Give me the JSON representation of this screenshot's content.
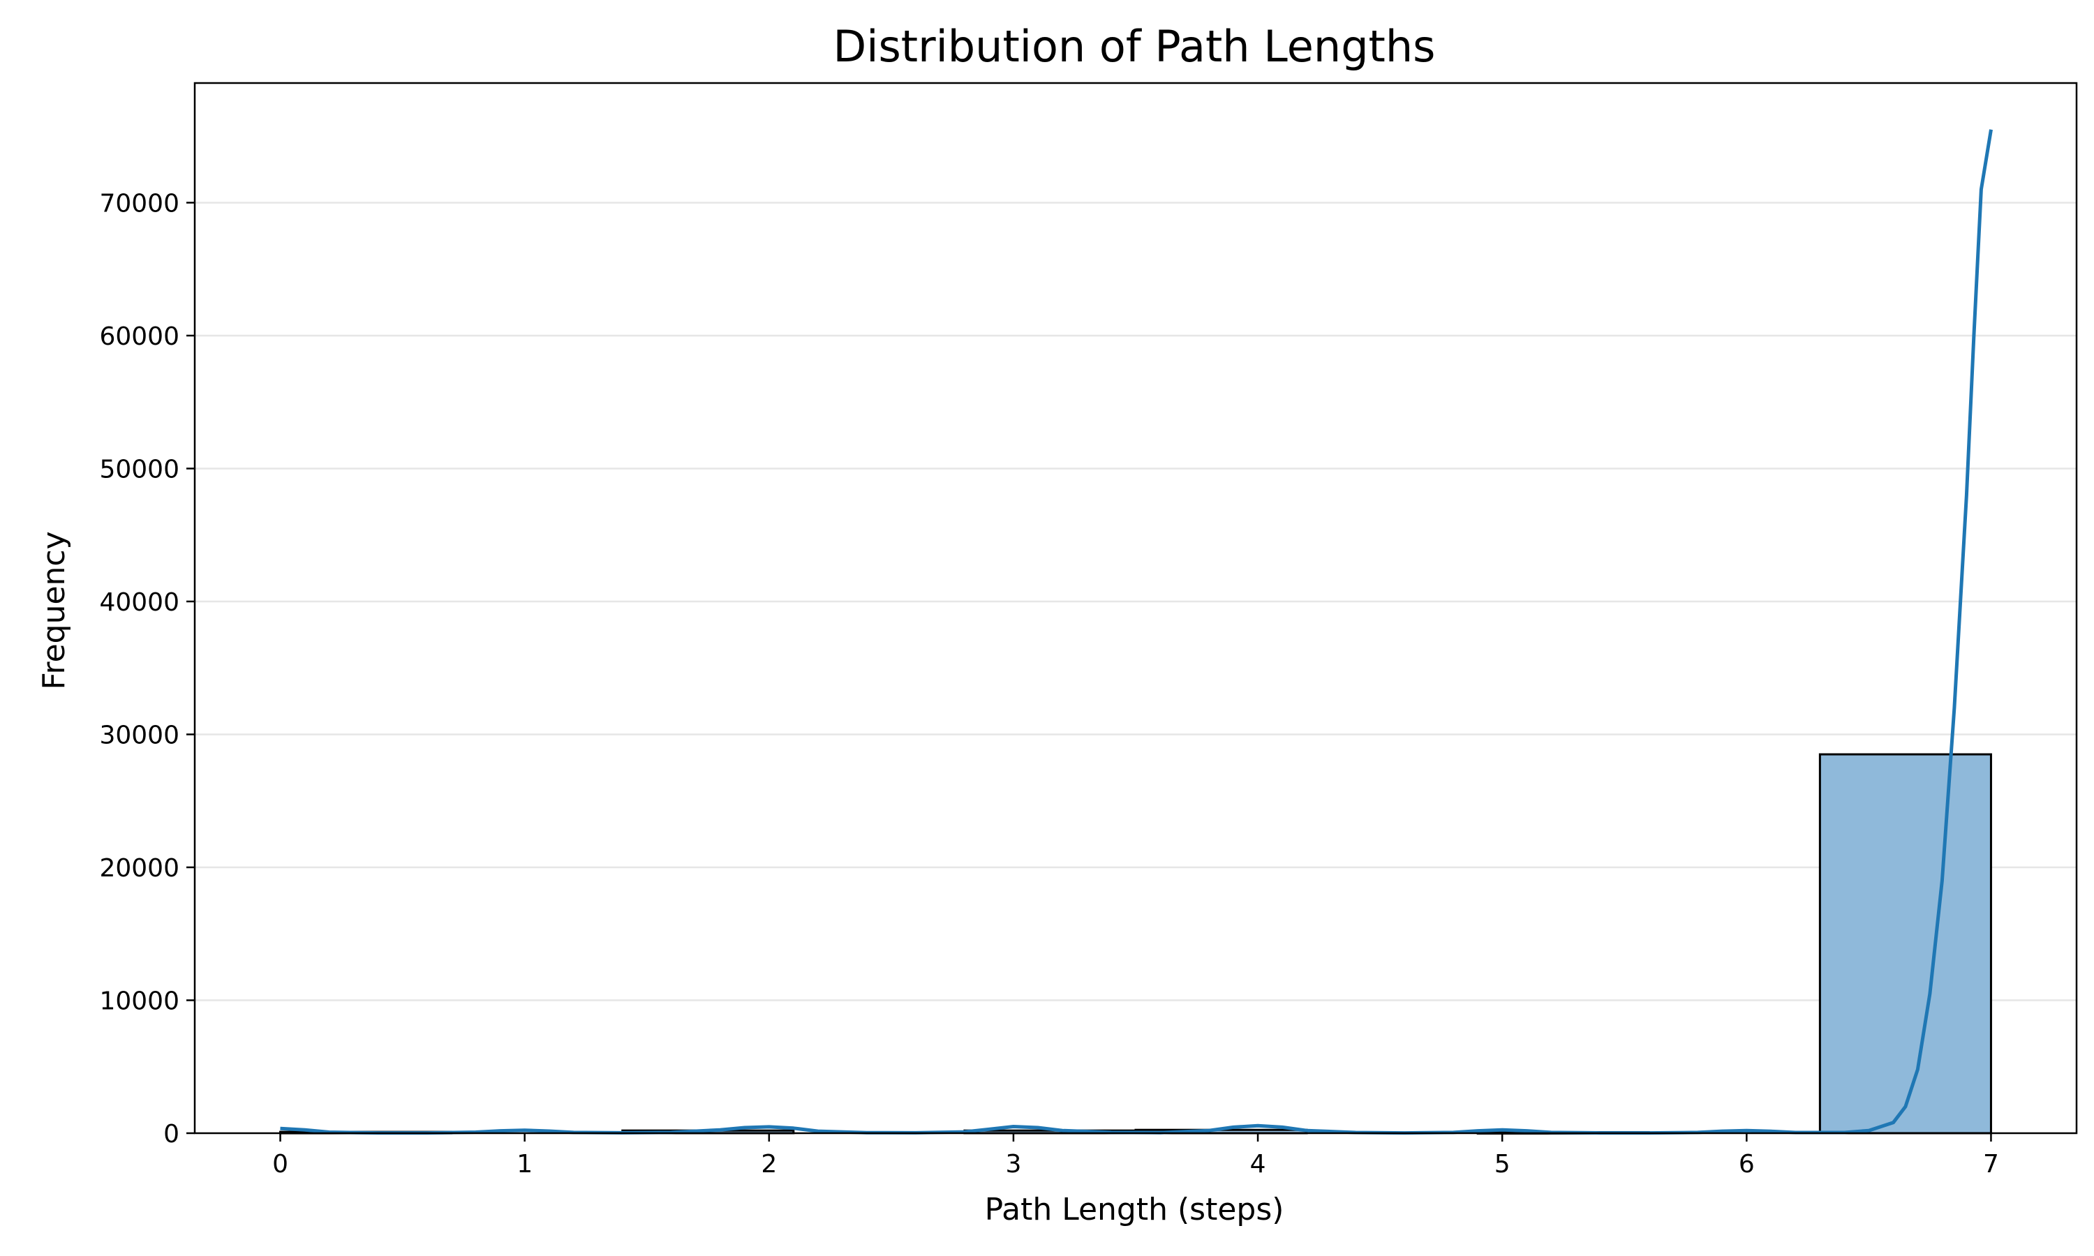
{
  "chart_data": {
    "type": "bar",
    "title": "Distribution of Path Lengths",
    "xlabel": "Path Length (steps)",
    "ylabel": "Frequency",
    "xlim": [
      -0.35,
      7.35
    ],
    "ylim": [
      0,
      79000
    ],
    "x_ticks": [
      0,
      1,
      2,
      3,
      4,
      5,
      6,
      7
    ],
    "y_ticks": [
      0,
      10000,
      20000,
      30000,
      40000,
      50000,
      60000,
      70000
    ],
    "grid": "horizontal",
    "bins": [
      {
        "x0": 0.0,
        "x1": 0.7,
        "value": 100
      },
      {
        "x0": 0.7,
        "x1": 1.4,
        "value": 0
      },
      {
        "x0": 1.4,
        "x1": 2.1,
        "value": 200
      },
      {
        "x0": 2.1,
        "x1": 2.8,
        "value": 0
      },
      {
        "x0": 2.8,
        "x1": 3.5,
        "value": 200
      },
      {
        "x0": 3.5,
        "x1": 4.2,
        "value": 250
      },
      {
        "x0": 4.2,
        "x1": 4.9,
        "value": 0
      },
      {
        "x0": 4.9,
        "x1": 5.6,
        "value": 80
      },
      {
        "x0": 5.6,
        "x1": 6.3,
        "value": 0
      },
      {
        "x0": 6.3,
        "x1": 7.0,
        "value": 28500
      }
    ],
    "kde": {
      "x": [
        0.0,
        0.1,
        0.2,
        0.4,
        0.6,
        0.8,
        0.9,
        1.0,
        1.1,
        1.2,
        1.4,
        1.6,
        1.8,
        1.9,
        2.0,
        2.1,
        2.2,
        2.4,
        2.6,
        2.8,
        2.9,
        3.0,
        3.1,
        3.2,
        3.4,
        3.6,
        3.8,
        3.9,
        4.0,
        4.1,
        4.2,
        4.4,
        4.6,
        4.8,
        4.9,
        5.0,
        5.1,
        5.2,
        5.4,
        5.6,
        5.8,
        5.9,
        6.0,
        6.1,
        6.2,
        6.4,
        6.5,
        6.6,
        6.65,
        6.7,
        6.75,
        6.8,
        6.85,
        6.9,
        6.93,
        6.96,
        7.0
      ],
      "y": [
        350,
        250,
        80,
        20,
        20,
        80,
        180,
        220,
        160,
        60,
        30,
        60,
        250,
        420,
        480,
        380,
        150,
        40,
        30,
        100,
        300,
        500,
        420,
        200,
        60,
        40,
        200,
        450,
        560,
        450,
        200,
        50,
        20,
        60,
        180,
        250,
        180,
        60,
        20,
        20,
        60,
        150,
        200,
        140,
        50,
        50,
        200,
        800,
        2000,
        4800,
        10500,
        19000,
        32000,
        48000,
        60000,
        71000,
        75500
      ],
      "color": "#1f77b4"
    },
    "bar_color": "#8fb9da",
    "edge_color": "#000000"
  }
}
